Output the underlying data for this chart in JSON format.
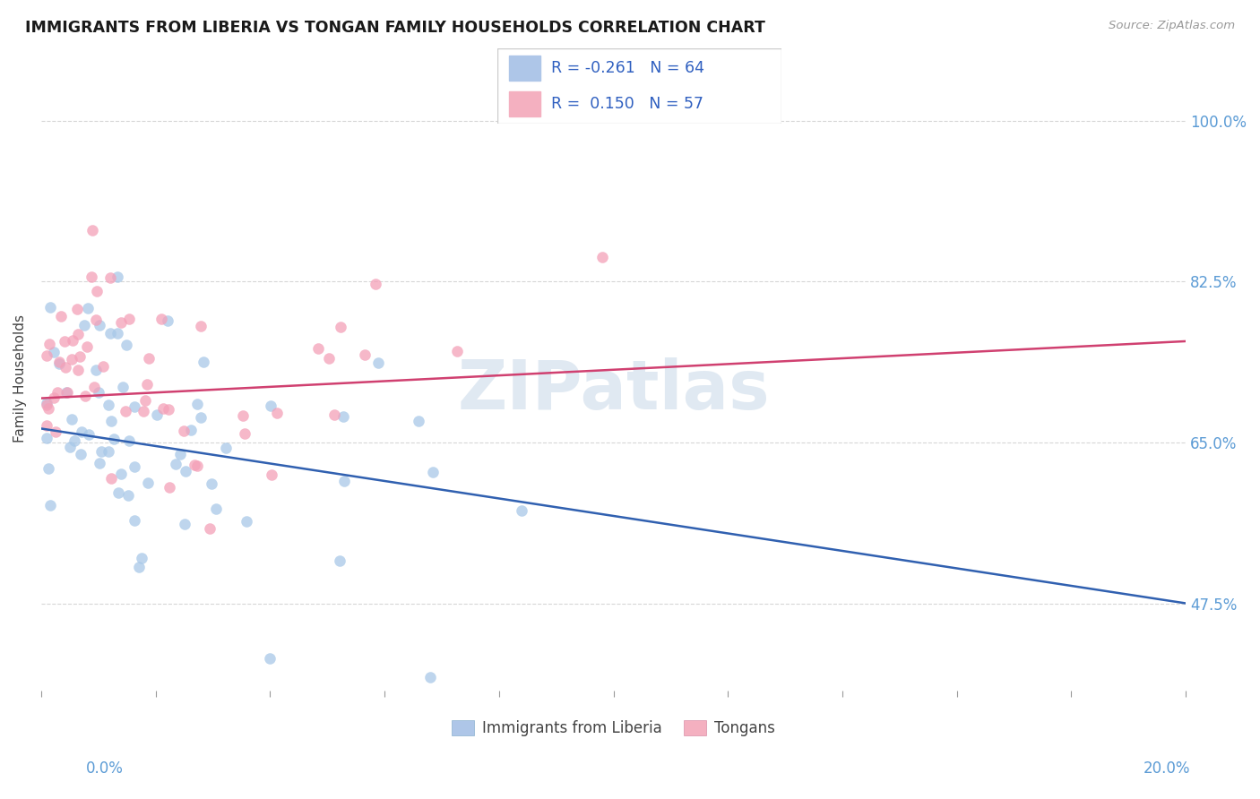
{
  "title": "IMMIGRANTS FROM LIBERIA VS TONGAN FAMILY HOUSEHOLDS CORRELATION CHART",
  "source": "Source: ZipAtlas.com",
  "ylabel": "Family Households",
  "y_ticks": [
    "47.5%",
    "65.0%",
    "82.5%",
    "100.0%"
  ],
  "y_tick_vals": [
    0.475,
    0.65,
    0.825,
    1.0
  ],
  "x_range": [
    0.0,
    0.2
  ],
  "y_range": [
    0.38,
    1.06
  ],
  "liberia_color": "#a8c8e8",
  "tongan_color": "#f4a0b8",
  "liberia_line_color": "#3060b0",
  "tongan_line_color": "#d04070",
  "watermark_text": "ZIPatlas",
  "liberia_R": -0.261,
  "liberia_N": 64,
  "tongan_R": 0.15,
  "tongan_N": 57,
  "legend_blue_color": "#aec6e8",
  "legend_pink_color": "#f4b0c0",
  "bottom_legend_blue": "Immigrants from Liberia",
  "bottom_legend_pink": "Tongans"
}
